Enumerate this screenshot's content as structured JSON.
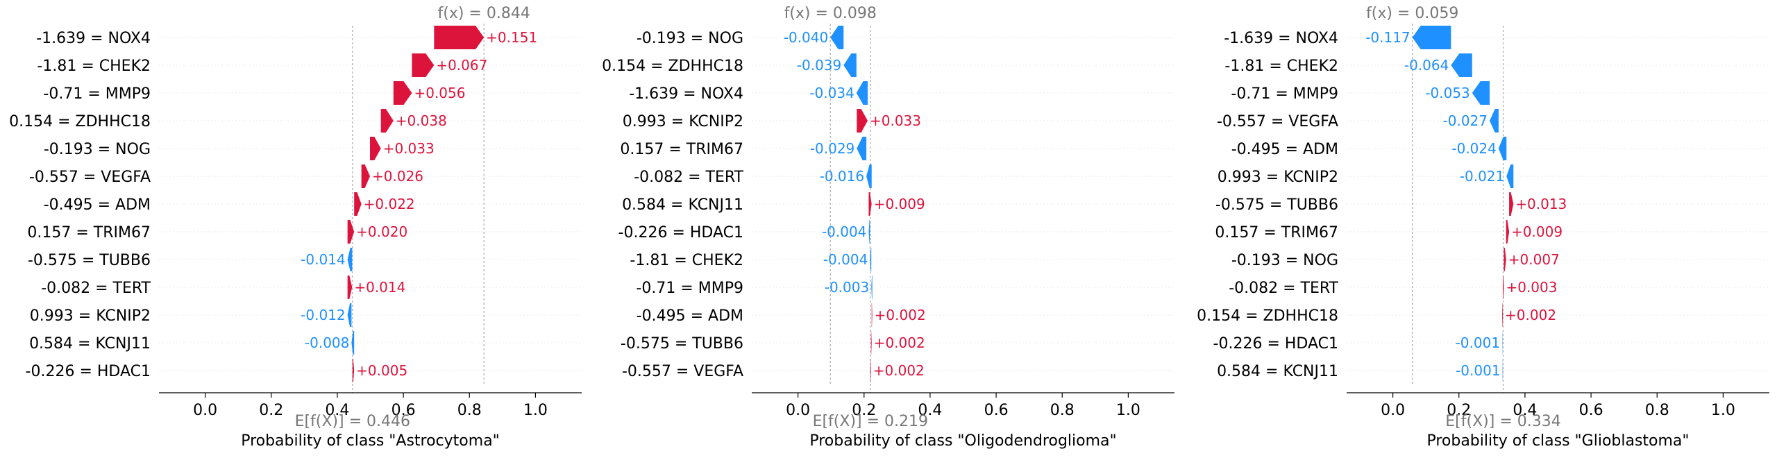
{
  "chart_data": [
    {
      "type": "waterfall",
      "fx_label": "f(x) = 0.844",
      "base_label": "E[f(X)] = 0.446",
      "xlabel": "Probability of class \"Astrocytoma\"",
      "fx": 0.844,
      "base": 0.446,
      "xlim": [
        -0.14,
        1.14
      ],
      "ticks": [
        0.0,
        0.2,
        0.4,
        0.6,
        0.8,
        1.0
      ],
      "tick_labels": [
        "0.0",
        "0.2",
        "0.4",
        "0.6",
        "0.8",
        "1.0"
      ],
      "features": [
        {
          "label": "-1.639 = NOX4",
          "value": 0.151,
          "text": "+0.151"
        },
        {
          "label": "-1.81 = CHEK2",
          "value": 0.067,
          "text": "+0.067"
        },
        {
          "label": "-0.71 = MMP9",
          "value": 0.056,
          "text": "+0.056"
        },
        {
          "label": "0.154 = ZDHHC18",
          "value": 0.038,
          "text": "+0.038"
        },
        {
          "label": "-0.193 = NOG",
          "value": 0.033,
          "text": "+0.033"
        },
        {
          "label": "-0.557 = VEGFA",
          "value": 0.026,
          "text": "+0.026"
        },
        {
          "label": "-0.495 = ADM",
          "value": 0.022,
          "text": "+0.022"
        },
        {
          "label": "0.157 = TRIM67",
          "value": 0.02,
          "text": "+0.020"
        },
        {
          "label": "-0.575 = TUBB6",
          "value": -0.014,
          "text": "-0.014"
        },
        {
          "label": "-0.082 = TERT",
          "value": 0.014,
          "text": "+0.014"
        },
        {
          "label": "0.993 = KCNIP2",
          "value": -0.012,
          "text": "-0.012"
        },
        {
          "label": "0.584 = KCNJ11",
          "value": -0.008,
          "text": "-0.008"
        },
        {
          "label": "-0.226 = HDAC1",
          "value": 0.005,
          "text": "+0.005"
        }
      ]
    },
    {
      "type": "waterfall",
      "fx_label": "f(x) = 0.098",
      "base_label": "E[f(X)] = 0.219",
      "xlabel": "Probability of class \"Oligodendroglioma\"",
      "fx": 0.098,
      "base": 0.219,
      "xlim": [
        -0.14,
        1.14
      ],
      "ticks": [
        0.0,
        0.2,
        0.4,
        0.6,
        0.8,
        1.0
      ],
      "tick_labels": [
        "0.0",
        "0.2",
        "0.4",
        "0.6",
        "0.8",
        "1.0"
      ],
      "features": [
        {
          "label": "-0.193 = NOG",
          "value": -0.04,
          "text": "-0.040"
        },
        {
          "label": "0.154 = ZDHHC18",
          "value": -0.039,
          "text": "-0.039"
        },
        {
          "label": "-1.639 = NOX4",
          "value": -0.034,
          "text": "-0.034"
        },
        {
          "label": "0.993 = KCNIP2",
          "value": 0.033,
          "text": "+0.033"
        },
        {
          "label": "0.157 = TRIM67",
          "value": -0.029,
          "text": "-0.029"
        },
        {
          "label": "-0.082 = TERT",
          "value": -0.016,
          "text": "-0.016"
        },
        {
          "label": "0.584 = KCNJ11",
          "value": 0.009,
          "text": "+0.009"
        },
        {
          "label": "-0.226 = HDAC1",
          "value": -0.004,
          "text": "-0.004"
        },
        {
          "label": "-1.81 = CHEK2",
          "value": -0.004,
          "text": "-0.004"
        },
        {
          "label": "-0.71 = MMP9",
          "value": -0.003,
          "text": "-0.003"
        },
        {
          "label": "-0.495 = ADM",
          "value": 0.002,
          "text": "+0.002"
        },
        {
          "label": "-0.575 = TUBB6",
          "value": 0.002,
          "text": "+0.002"
        },
        {
          "label": "-0.557 = VEGFA",
          "value": 0.002,
          "text": "+0.002"
        }
      ]
    },
    {
      "type": "waterfall",
      "fx_label": "f(x) = 0.059",
      "base_label": "E[f(X)] = 0.334",
      "xlabel": "Probability of class \"Glioblastoma\"",
      "fx": 0.059,
      "base": 0.334,
      "xlim": [
        -0.14,
        1.14
      ],
      "ticks": [
        0.0,
        0.2,
        0.4,
        0.6,
        0.8,
        1.0
      ],
      "tick_labels": [
        "0.0",
        "0.2",
        "0.4",
        "0.6",
        "0.8",
        "1.0"
      ],
      "features": [
        {
          "label": "-1.639 = NOX4",
          "value": -0.117,
          "text": "-0.117"
        },
        {
          "label": "-1.81 = CHEK2",
          "value": -0.064,
          "text": "-0.064"
        },
        {
          "label": "-0.71 = MMP9",
          "value": -0.053,
          "text": "-0.053"
        },
        {
          "label": "-0.557 = VEGFA",
          "value": -0.027,
          "text": "-0.027"
        },
        {
          "label": "-0.495 = ADM",
          "value": -0.024,
          "text": "-0.024"
        },
        {
          "label": "0.993 = KCNIP2",
          "value": -0.021,
          "text": "-0.021"
        },
        {
          "label": "-0.575 = TUBB6",
          "value": 0.013,
          "text": "+0.013"
        },
        {
          "label": "0.157 = TRIM67",
          "value": 0.009,
          "text": "+0.009"
        },
        {
          "label": "-0.193 = NOG",
          "value": 0.007,
          "text": "+0.007"
        },
        {
          "label": "-0.082 = TERT",
          "value": 0.003,
          "text": "+0.003"
        },
        {
          "label": "0.154 = ZDHHC18",
          "value": 0.002,
          "text": "+0.002"
        },
        {
          "label": "-0.226 = HDAC1",
          "value": -0.001,
          "text": "-0.001"
        },
        {
          "label": "0.584 = KCNJ11",
          "value": -0.001,
          "text": "-0.001"
        }
      ]
    }
  ],
  "colors": {
    "positive": "#dc143c",
    "negative": "#1e90ff",
    "muted_text": "#777777",
    "axis": "#000000",
    "grid": "#e8e8e8",
    "dotted": "#aaaaaa"
  }
}
